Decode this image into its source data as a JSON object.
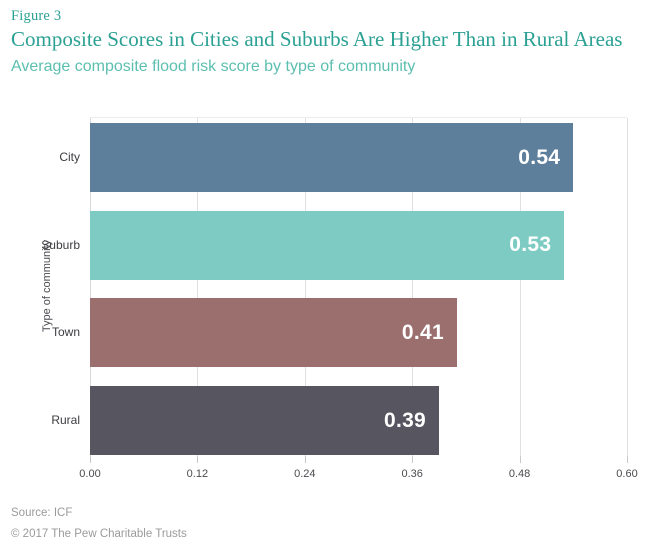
{
  "header": {
    "figure_label": "Figure 3",
    "title": "Composite Scores in Cities and Suburbs Are Higher Than in Rural Areas",
    "subtitle": "Average composite flood risk score by type of community"
  },
  "footer": {
    "source": "Source: ICF",
    "copyright": "© 2017 The Pew Charitable Trusts"
  },
  "colors": {
    "title_teal": "#2BA193",
    "subtitle_teal": "#5CBFAF",
    "axis_text": "#4B4B50",
    "category_text": "#3C3C41",
    "gridline": "#E0E0E0",
    "value_label": "#FFFFFF",
    "footer_text": "#9B9B9B"
  },
  "chart_data": {
    "type": "bar",
    "orientation": "horizontal",
    "title": "Composite Scores in Cities and Suburbs Are Higher Than in Rural Areas",
    "subtitle": "Average composite flood risk score by type of community",
    "categories": [
      "City",
      "Suburb",
      "Town",
      "Rural"
    ],
    "values": [
      0.54,
      0.53,
      0.41,
      0.39
    ],
    "value_labels": [
      "0.54",
      "0.53",
      "0.41",
      "0.39"
    ],
    "bar_colors": [
      "#5E7F9C",
      "#7DCBC3",
      "#9A6F6E",
      "#57555F"
    ],
    "xlabel": "",
    "ylabel": "Type of community",
    "xlim": [
      0,
      0.6
    ],
    "x_ticks": [
      "0.00",
      "0.12",
      "0.24",
      "0.36",
      "0.48",
      "0.60"
    ],
    "x_tick_values": [
      0,
      0.12,
      0.24,
      0.36,
      0.48,
      0.6
    ],
    "grid": "vertical-only",
    "legend": "none",
    "value_labels_position": "inside-end"
  }
}
